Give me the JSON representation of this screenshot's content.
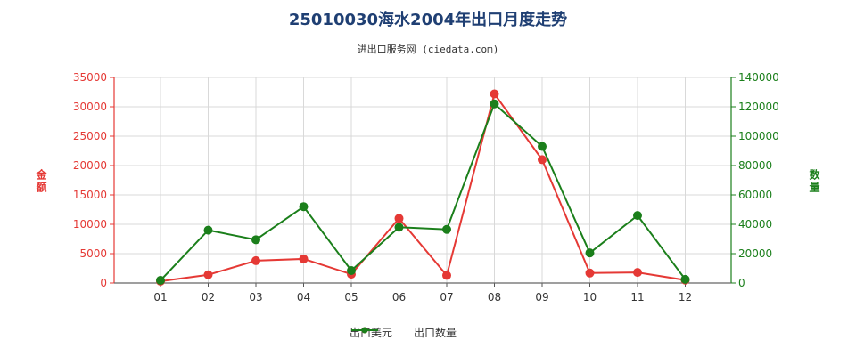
{
  "header": {
    "title": "25010030海水2004年出口月度走势",
    "subtitle": "进出口服务网 (ciedata.com)"
  },
  "axes": {
    "left_title": "金额",
    "right_title": "数量"
  },
  "legend": {
    "series_1": "出口美元",
    "series_2": "出口数量"
  },
  "chart_data": {
    "type": "line",
    "categories": [
      "01",
      "02",
      "03",
      "04",
      "05",
      "06",
      "07",
      "08",
      "09",
      "10",
      "11",
      "12"
    ],
    "series": [
      {
        "name": "出口美元",
        "axis": "left",
        "color": "#e53935",
        "values": [
          300,
          1400,
          3800,
          4100,
          1500,
          11000,
          1300,
          32200,
          21000,
          1700,
          1800,
          500
        ]
      },
      {
        "name": "出口数量",
        "axis": "right",
        "color": "#1b7f1b",
        "values": [
          1800,
          36000,
          29500,
          52000,
          8500,
          38000,
          36500,
          122000,
          93000,
          20500,
          46000,
          2500
        ]
      }
    ],
    "left_ylim": [
      0,
      35000
    ],
    "right_ylim": [
      0,
      140000
    ],
    "left_ticks": [
      "0",
      "5000",
      "10000",
      "15000",
      "20000",
      "25000",
      "30000",
      "35000"
    ],
    "right_ticks": [
      "0",
      "20000",
      "40000",
      "60000",
      "80000",
      "100000",
      "120000",
      "140000"
    ],
    "grid": true,
    "legend_position": "bottom-center"
  },
  "colors": {
    "left_axis": "#e53935",
    "right_axis": "#1b7f1b",
    "grid": "#d9d9d9"
  }
}
